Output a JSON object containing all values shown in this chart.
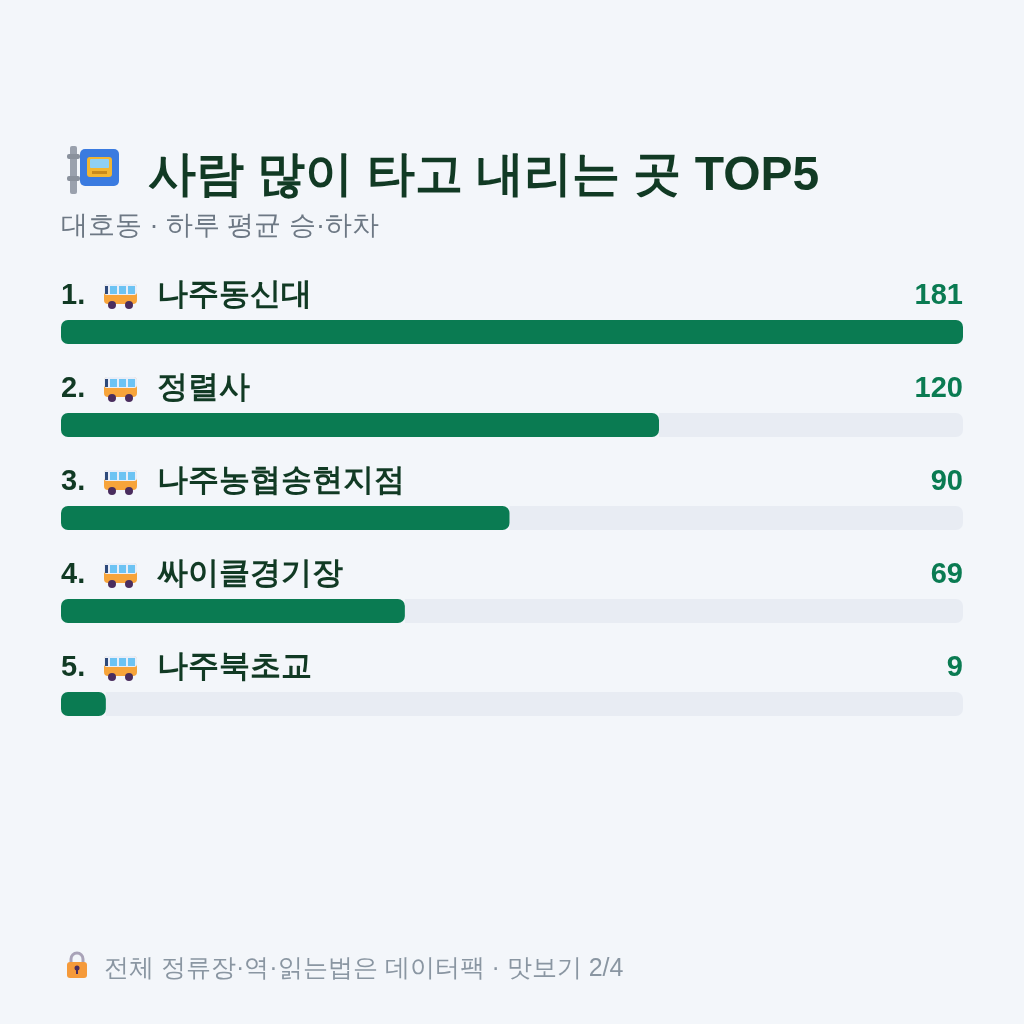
{
  "chart_data": {
    "type": "bar",
    "orientation": "horizontal",
    "title": "사람 많이 타고 내리는 곳 TOP5",
    "subtitle": "대호동 · 하루 평균 승·하차",
    "categories": [
      "1. 나주동신대",
      "2. 정렬사",
      "3. 나주농협송현지점",
      "4. 싸이클경기장",
      "5. 나주북초교"
    ],
    "values": [
      181,
      120,
      90,
      69,
      9
    ],
    "color": "#0a7b52",
    "data_labels": true,
    "annotations": [
      "전체 정류장·역·읽는법은 데이터팩 · 맛보기 2/4"
    ]
  }
}
